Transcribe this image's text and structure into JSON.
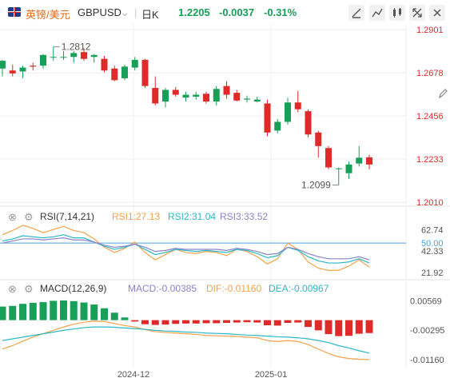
{
  "header": {
    "symbol_cn": "英镑/美元",
    "symbol": "GBPUSD",
    "interval": "日K",
    "price": "1.2205",
    "change": "-0.0037",
    "change_pct": "-0.31%",
    "colors": {
      "up": "#e02a2a",
      "down": "#18a058"
    },
    "tool_icons": [
      "draw-line-icon",
      "indicator-icon",
      "settings-icon",
      "expand-icon",
      "close-icon"
    ]
  },
  "rsi_header": {
    "name": "RSI(7,14,21)",
    "rsi1": "RSI1:27.13",
    "rsi2": "RSI2:31.04",
    "rsi3": "RSI3:33.52"
  },
  "macd_header": {
    "name": "MACD(12,26,9)",
    "macd": "MACD:-0.00385",
    "dif": "DIF:-0.01160",
    "dea": "DEA:-0.00967"
  },
  "chart_data": [
    {
      "type": "candlestick",
      "title": "GBPUSD 日K",
      "ylim": [
        1.199,
        1.293
      ],
      "y_ticks": [
        "1.2901",
        "1.2678",
        "1.2456",
        "1.2233",
        "1.2010"
      ],
      "x_ticks": [
        "2024-12",
        "2025-01"
      ],
      "annotations": [
        {
          "text": "1.2812",
          "type": "max"
        },
        {
          "text": "1.2099",
          "type": "min"
        }
      ],
      "candles": [
        {
          "o": 1.27,
          "h": 1.2745,
          "l": 1.266,
          "c": 1.274
        },
        {
          "o": 1.269,
          "h": 1.272,
          "l": 1.266,
          "c": 1.2675
        },
        {
          "o": 1.2685,
          "h": 1.2715,
          "l": 1.265,
          "c": 1.2705
        },
        {
          "o": 1.2715,
          "h": 1.273,
          "l": 1.269,
          "c": 1.271
        },
        {
          "o": 1.2715,
          "h": 1.2775,
          "l": 1.27,
          "c": 1.277
        },
        {
          "o": 1.276,
          "h": 1.2812,
          "l": 1.274,
          "c": 1.276
        },
        {
          "o": 1.276,
          "h": 1.279,
          "l": 1.2745,
          "c": 1.276
        },
        {
          "o": 1.276,
          "h": 1.279,
          "l": 1.273,
          "c": 1.278
        },
        {
          "o": 1.2785,
          "h": 1.2805,
          "l": 1.274,
          "c": 1.275
        },
        {
          "o": 1.276,
          "h": 1.2775,
          "l": 1.273,
          "c": 1.277
        },
        {
          "o": 1.275,
          "h": 1.2765,
          "l": 1.268,
          "c": 1.269
        },
        {
          "o": 1.27,
          "h": 1.2715,
          "l": 1.2635,
          "c": 1.264
        },
        {
          "o": 1.265,
          "h": 1.272,
          "l": 1.264,
          "c": 1.271
        },
        {
          "o": 1.2705,
          "h": 1.276,
          "l": 1.269,
          "c": 1.2745
        },
        {
          "o": 1.2745,
          "h": 1.275,
          "l": 1.26,
          "c": 1.261
        },
        {
          "o": 1.26,
          "h": 1.266,
          "l": 1.251,
          "c": 1.252
        },
        {
          "o": 1.253,
          "h": 1.26,
          "l": 1.25,
          "c": 1.259
        },
        {
          "o": 1.259,
          "h": 1.2605,
          "l": 1.2555,
          "c": 1.2565
        },
        {
          "o": 1.255,
          "h": 1.258,
          "l": 1.253,
          "c": 1.2565
        },
        {
          "o": 1.2555,
          "h": 1.258,
          "l": 1.254,
          "c": 1.2565
        },
        {
          "o": 1.257,
          "h": 1.258,
          "l": 1.252,
          "c": 1.253
        },
        {
          "o": 1.253,
          "h": 1.261,
          "l": 1.251,
          "c": 1.2595
        },
        {
          "o": 1.261,
          "h": 1.2635,
          "l": 1.2545,
          "c": 1.2565
        },
        {
          "o": 1.2575,
          "h": 1.259,
          "l": 1.253,
          "c": 1.2535
        },
        {
          "o": 1.254,
          "h": 1.256,
          "l": 1.2525,
          "c": 1.2545
        },
        {
          "o": 1.253,
          "h": 1.2555,
          "l": 1.2525,
          "c": 1.254
        },
        {
          "o": 1.252,
          "h": 1.254,
          "l": 1.235,
          "c": 1.237
        },
        {
          "o": 1.238,
          "h": 1.244,
          "l": 1.2365,
          "c": 1.2425
        },
        {
          "o": 1.2425,
          "h": 1.255,
          "l": 1.241,
          "c": 1.2525
        },
        {
          "o": 1.2525,
          "h": 1.2585,
          "l": 1.2475,
          "c": 1.249
        },
        {
          "o": 1.248,
          "h": 1.249,
          "l": 1.2345,
          "c": 1.236
        },
        {
          "o": 1.237,
          "h": 1.238,
          "l": 1.224,
          "c": 1.23
        },
        {
          "o": 1.229,
          "h": 1.23,
          "l": 1.218,
          "c": 1.219
        },
        {
          "o": 1.2185,
          "h": 1.219,
          "l": 1.2099,
          "c": 1.2185
        },
        {
          "o": 1.216,
          "h": 1.222,
          "l": 1.213,
          "c": 1.2205
        },
        {
          "o": 1.221,
          "h": 1.23,
          "l": 1.2195,
          "c": 1.224
        },
        {
          "o": 1.2242,
          "h": 1.2255,
          "l": 1.218,
          "c": 1.2205
        }
      ]
    },
    {
      "type": "line",
      "title": "RSI(7,14,21)",
      "ylim": [
        15,
        70
      ],
      "y_ticks": [
        "62.74",
        "50.00",
        "42.33",
        "21.92"
      ],
      "reference_line": 50,
      "series": [
        {
          "name": "RSI1",
          "color": "#f5a24a",
          "values": [
            58,
            62,
            67,
            64,
            60,
            63,
            66,
            62,
            60,
            54,
            46,
            41,
            45,
            51,
            41,
            34,
            39,
            44,
            41,
            40,
            42,
            41,
            38,
            44,
            42,
            37,
            30,
            35,
            50,
            44,
            32,
            26,
            24,
            24,
            28,
            34,
            27
          ]
        },
        {
          "name": "RSI2",
          "color": "#2bb8c8",
          "values": [
            52,
            54,
            57,
            56,
            55,
            56,
            58,
            55,
            55,
            51,
            47,
            44,
            46,
            49,
            44,
            39,
            41,
            44,
            43,
            42,
            43,
            42,
            41,
            44,
            43,
            40,
            36,
            38,
            46,
            43,
            37,
            33,
            31,
            31,
            32,
            35,
            31
          ]
        },
        {
          "name": "RSI3",
          "color": "#8a84c9",
          "values": [
            50,
            52,
            54,
            54,
            53,
            54,
            55,
            53,
            53,
            51,
            48,
            46,
            47,
            49,
            46,
            42,
            43,
            45,
            44,
            44,
            44,
            44,
            43,
            45,
            44,
            42,
            39,
            40,
            46,
            44,
            40,
            37,
            35,
            35,
            35,
            37,
            34
          ]
        }
      ]
    },
    {
      "type": "bar+line",
      "title": "MACD(12,26,9)",
      "ylim": [
        -0.0135,
        0.0072
      ],
      "y_ticks": [
        "0.00569",
        "-0.00295",
        "-0.01160"
      ],
      "series": [
        {
          "name": "MACD",
          "type": "bar",
          "values": [
            0.004,
            0.0042,
            0.0048,
            0.0051,
            0.0053,
            0.0057,
            0.0058,
            0.0056,
            0.0052,
            0.0046,
            0.0035,
            0.0022,
            0.0008,
            -0.0004,
            -0.0012,
            -0.0014,
            -0.0013,
            -0.0011,
            -0.001,
            -0.001,
            -0.0009,
            -0.0009,
            -0.0008,
            -0.0007,
            -0.0006,
            -0.0007,
            -0.0015,
            -0.0016,
            -0.0008,
            -0.0007,
            -0.002,
            -0.003,
            -0.0041,
            -0.0047,
            -0.0046,
            -0.004,
            -0.0038
          ]
        },
        {
          "name": "DIF",
          "color": "#f5a24a",
          "values": [
            -0.0085,
            -0.0075,
            -0.0062,
            -0.005,
            -0.004,
            -0.003,
            -0.002,
            -0.0012,
            -0.0006,
            -0.0003,
            -0.0004,
            -0.001,
            -0.0016,
            -0.002,
            -0.0028,
            -0.0034,
            -0.0036,
            -0.0038,
            -0.004,
            -0.0042,
            -0.0045,
            -0.0046,
            -0.0047,
            -0.0048,
            -0.005,
            -0.0052,
            -0.006,
            -0.0063,
            -0.006,
            -0.0063,
            -0.0072,
            -0.0085,
            -0.0098,
            -0.0108,
            -0.0113,
            -0.0115,
            -0.0116
          ]
        },
        {
          "name": "DEA",
          "color": "#2bb8c8",
          "values": [
            -0.006,
            -0.0055,
            -0.005,
            -0.0045,
            -0.004,
            -0.0035,
            -0.003,
            -0.0026,
            -0.0022,
            -0.002,
            -0.002,
            -0.0021,
            -0.0023,
            -0.0025,
            -0.0027,
            -0.003,
            -0.0032,
            -0.0033,
            -0.0035,
            -0.0036,
            -0.0038,
            -0.0039,
            -0.004,
            -0.0042,
            -0.0044,
            -0.0045,
            -0.0047,
            -0.0049,
            -0.005,
            -0.0052,
            -0.0055,
            -0.006,
            -0.0066,
            -0.0075,
            -0.0082,
            -0.009,
            -0.0097
          ]
        }
      ]
    }
  ]
}
